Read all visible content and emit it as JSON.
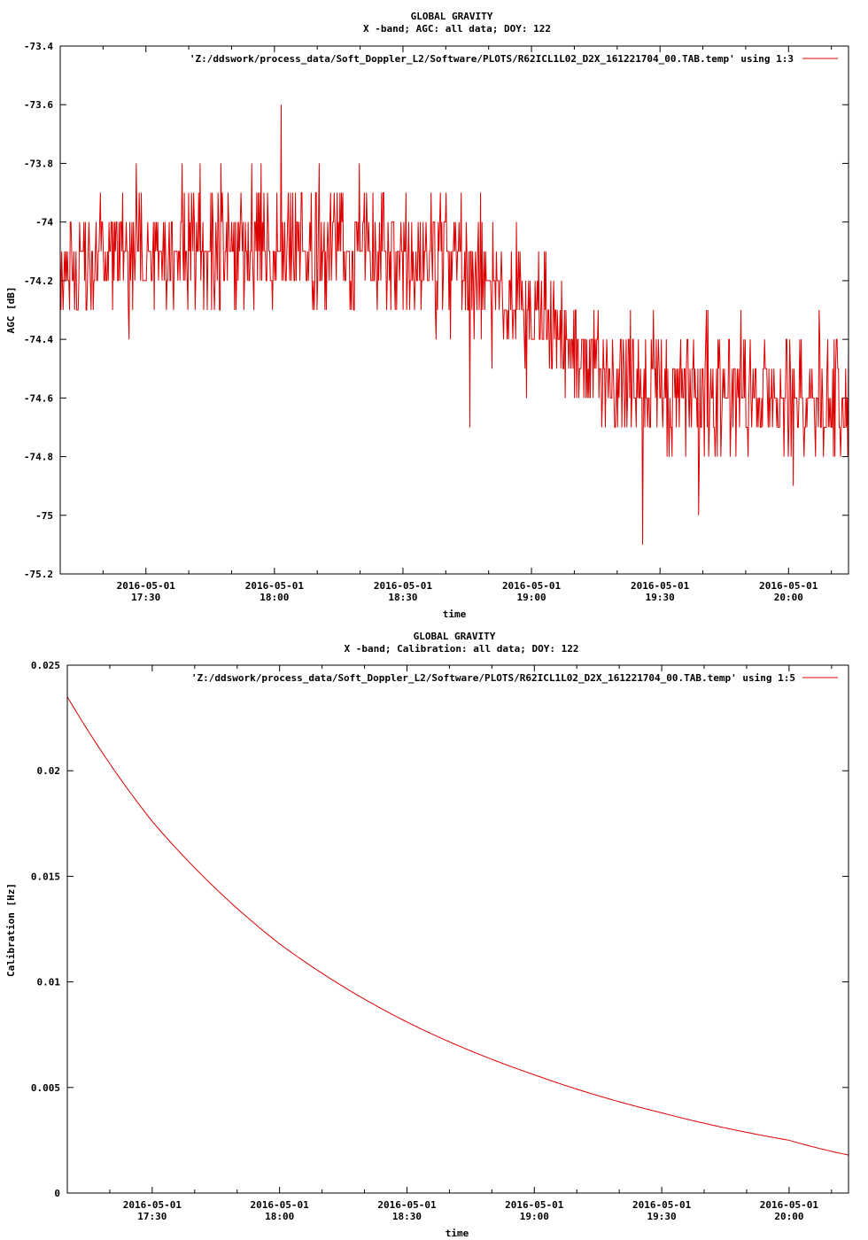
{
  "colors": {
    "series": "#dd0000",
    "axis": "#000000",
    "background": "#ffffff"
  },
  "chart_data": [
    {
      "type": "line",
      "title": "GLOBAL GRAVITY",
      "subtitle": "X -band; AGC: all data; DOY: 122",
      "xlabel": "time",
      "ylabel": "AGC [dB]",
      "xlim": [
        "2016-05-01 17:10",
        "2016-05-01 20:14"
      ],
      "ylim": [
        -75.2,
        -73.4
      ],
      "yticks": [
        -73.4,
        -73.6,
        -73.8,
        -74,
        -74.2,
        -74.4,
        -74.6,
        -74.8,
        -75,
        -75.2
      ],
      "ytick_labels": [
        "-73.4",
        "-73.6",
        "-73.8",
        "-74",
        "-74.2",
        "-74.4",
        "-74.6",
        "-74.8",
        "-75",
        "-75.2"
      ],
      "xticks": [
        "2016-05-01 17:30",
        "2016-05-01 18:00",
        "2016-05-01 18:30",
        "2016-05-01 19:00",
        "2016-05-01 19:30",
        "2016-05-01 20:00"
      ],
      "xtick_date": "2016-05-01",
      "xtick_times": [
        "17:30",
        "18:00",
        "18:30",
        "19:00",
        "19:30",
        "20:00"
      ],
      "grid": false,
      "legend_position": "top-right",
      "series": [
        {
          "name": "'Z:/ddswork/process_data/Soft_Doppler_L2/Software/PLOTS/R62ICL1L02_D2X_161221704_00.TAB.temp' using 1:3",
          "x_range": [
            "2016-05-01 17:10",
            "2016-05-01 20:14"
          ],
          "samples": 1100,
          "quantization": 0.1,
          "trend": [
            [
              0,
              -74.12
            ],
            [
              0.25,
              -74.08
            ],
            [
              0.5,
              -74.12
            ],
            [
              0.6,
              -74.3
            ],
            [
              0.7,
              -74.55
            ],
            [
              1,
              -74.6
            ]
          ],
          "noise": 0.16,
          "extremes": [
            [
              0.28,
              -73.6
            ],
            [
              0.739,
              -75.1
            ],
            [
              0.81,
              -75.0
            ],
            [
              0.52,
              -74.7
            ],
            [
              0.93,
              -74.9
            ]
          ]
        }
      ]
    },
    {
      "type": "line",
      "title": "GLOBAL GRAVITY",
      "subtitle": "X -band; Calibration: all data; DOY: 122",
      "xlabel": "time",
      "ylabel": "Calibration [Hz]",
      "xlim": [
        "2016-05-01 17:10",
        "2016-05-01 20:14"
      ],
      "ylim": [
        0,
        0.025
      ],
      "yticks": [
        0,
        0.005,
        0.01,
        0.015,
        0.02,
        0.025
      ],
      "ytick_labels": [
        "0",
        "0.005",
        "0.01",
        "0.015",
        "0.02",
        "0.025"
      ],
      "xticks": [
        "2016-05-01 17:30",
        "2016-05-01 18:00",
        "2016-05-01 18:30",
        "2016-05-01 19:00",
        "2016-05-01 19:30",
        "2016-05-01 20:00"
      ],
      "xtick_date": "2016-05-01",
      "xtick_times": [
        "17:30",
        "18:00",
        "18:30",
        "19:00",
        "19:30",
        "20:00"
      ],
      "grid": false,
      "legend_position": "top-right",
      "series": [
        {
          "name": "'Z:/ddswork/process_data/Soft_Doppler_L2/Software/PLOTS/R62ICL1L02_D2X_161221704_00.TAB.temp' using 1:5",
          "x": [
            "2016-05-01 17:10",
            "2016-05-01 17:30",
            "2016-05-01 18:00",
            "2016-05-01 18:30",
            "2016-05-01 19:00",
            "2016-05-01 19:30",
            "2016-05-01 20:00",
            "2016-05-01 20:14"
          ],
          "y": [
            0.0235,
            0.0176,
            0.0118,
            0.0081,
            0.0056,
            0.0038,
            0.0025,
            0.0018
          ]
        }
      ]
    }
  ]
}
